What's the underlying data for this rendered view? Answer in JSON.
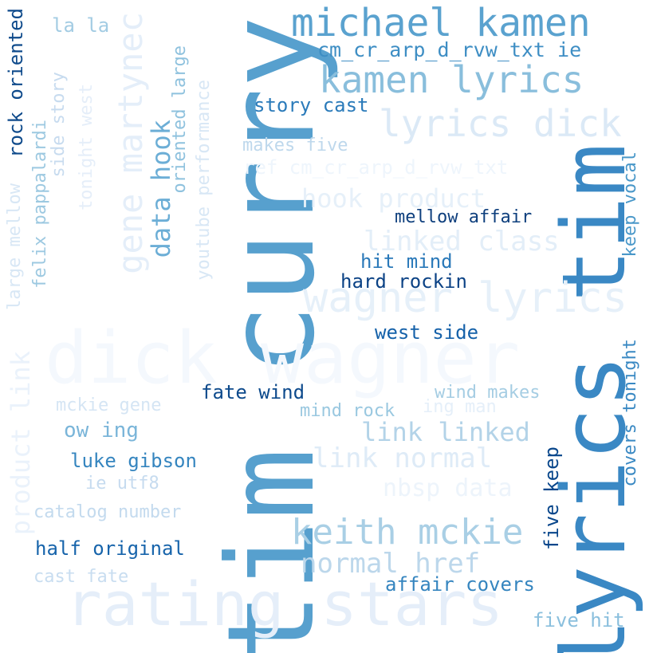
{
  "words": [
    {
      "text": "tim curry",
      "color": "#57a0ce"
    },
    {
      "text": "lyrics tim",
      "color": "#3a88c4"
    },
    {
      "text": "dick wagner",
      "color": "#f4f8fd"
    },
    {
      "text": "rating stars",
      "color": "#e5eef9"
    },
    {
      "text": "michael kamen",
      "color": "#5aa2cf"
    },
    {
      "text": "kamen lyrics",
      "color": "#89bedc"
    },
    {
      "text": "lyrics dick",
      "color": "#dbe9f6"
    },
    {
      "text": "wagner lyrics",
      "color": "#e6f0f9"
    },
    {
      "text": "gene martynec",
      "color": "#e4eef9"
    },
    {
      "text": "keith mckie",
      "color": "#a9cfe5"
    },
    {
      "text": "cm_cr_arp_d_rvw_txt ie",
      "color": "#3e8ec4"
    },
    {
      "text": "story cast",
      "color": "#2b7bba"
    },
    {
      "text": "makes five",
      "color": "#bed8ec"
    },
    {
      "text": "ref cm_cr_arp_d_rvw_txt",
      "color": "#eef5fc"
    },
    {
      "text": "hook product",
      "color": "#e6f0f9"
    },
    {
      "text": "mellow affair",
      "color": "#0e3f7d"
    },
    {
      "text": "linked class",
      "color": "#e3eef8"
    },
    {
      "text": "hit mind",
      "color": "#2a79b9"
    },
    {
      "text": "hard rockin",
      "color": "#0b4285"
    },
    {
      "text": "west side",
      "color": "#1561a9"
    },
    {
      "text": "fate wind",
      "color": "#0d4a8c"
    },
    {
      "text": "wind makes",
      "color": "#a5cde3"
    },
    {
      "text": "mind rock",
      "color": "#9ac8e0"
    },
    {
      "text": "ing man",
      "color": "#e5eff9"
    },
    {
      "text": "link linked",
      "color": "#b3d3e8"
    },
    {
      "text": "link normal",
      "color": "#deebf7"
    },
    {
      "text": "nbsp data",
      "color": "#edf4fb"
    },
    {
      "text": "mckie gene",
      "color": "#d5e5f4"
    },
    {
      "text": "ow ing",
      "color": "#7ab5d9"
    },
    {
      "text": "luke gibson",
      "color": "#3585bf"
    },
    {
      "text": "ie utf8",
      "color": "#c6dbef"
    },
    {
      "text": "catalog number",
      "color": "#c3daee"
    },
    {
      "text": "half original",
      "color": "#1764ab"
    },
    {
      "text": "cast fate",
      "color": "#c8ddf0"
    },
    {
      "text": "normal href",
      "color": "#bcd7eb"
    },
    {
      "text": "affair covers",
      "color": "#3585bf"
    },
    {
      "text": "five hit",
      "color": "#8abfdd"
    },
    {
      "text": "la la",
      "color": "#a3cce3"
    },
    {
      "text": "data hook",
      "color": "#6caed6"
    },
    {
      "text": "rock oriented",
      "color": "#0e4a8b"
    },
    {
      "text": "large mellow",
      "color": "#d8e7f5"
    },
    {
      "text": "felix pappalardi",
      "color": "#9dc9e1"
    },
    {
      "text": "side story",
      "color": "#c7dbef"
    },
    {
      "text": "tonight west",
      "color": "#e5eef9"
    },
    {
      "text": "oriented large",
      "color": "#8fc2de"
    },
    {
      "text": "youtube performance",
      "color": "#d8e7f5"
    },
    {
      "text": "product link",
      "color": "#eaf2fb"
    },
    {
      "text": "keep vocal",
      "color": "#4a98c9"
    },
    {
      "text": "covers tonight",
      "color": "#3a89c3"
    },
    {
      "text": "five keep",
      "color": "#08468b"
    }
  ]
}
